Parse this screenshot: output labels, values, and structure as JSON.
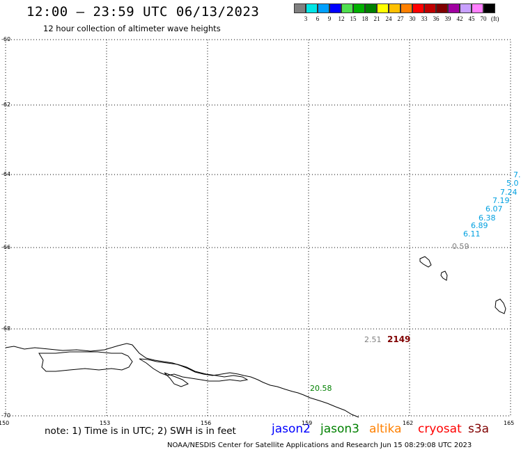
{
  "header": {
    "title": "12:00 – 23:59 UTC 06/13/2023",
    "subtitle": "12 hour collection of altimeter wave heights"
  },
  "color_scale": {
    "labels": [
      "3",
      "6",
      "9",
      "12",
      "15",
      "18",
      "21",
      "24",
      "27",
      "30",
      "33",
      "36",
      "39",
      "42",
      "45",
      "70"
    ],
    "unit": "(ft)",
    "colors": [
      "#808080",
      "#00e5e5",
      "#00a0ff",
      "#0000ff",
      "#50e050",
      "#00b000",
      "#008000",
      "#ffff00",
      "#ffc000",
      "#ff8000",
      "#ff0000",
      "#c00000",
      "#800000",
      "#a000a0",
      "#c8a0ff",
      "#ff80ff",
      "#000000"
    ]
  },
  "axes": {
    "lat_labels": [
      "-60",
      "-62",
      "-64",
      "-66",
      "-68",
      "-70"
    ],
    "lon_labels": [
      "150",
      "153",
      "156",
      "159",
      "162",
      "165"
    ]
  },
  "observations": [
    {
      "text": "7.",
      "color": "#00a0e0"
    },
    {
      "text": "5.0",
      "color": "#00a0e0"
    },
    {
      "text": "7.24",
      "color": "#00a0e0"
    },
    {
      "text": "7.19",
      "color": "#00a0e0"
    },
    {
      "text": "6.07",
      "color": "#00a0e0"
    },
    {
      "text": "6.38",
      "color": "#00a0e0"
    },
    {
      "text": "6.89",
      "color": "#00a0e0"
    },
    {
      "text": "6.11",
      "color": "#00a0e0"
    },
    {
      "text": "0.59",
      "color": "#808080"
    },
    {
      "text": "2.51",
      "color": "#808080"
    },
    {
      "text": "2149",
      "color": "#800000"
    },
    {
      "text": "20.58",
      "color": "#008000"
    }
  ],
  "footer": {
    "note": "note: 1) Time is in UTC; 2) SWH is in feet",
    "satellites": [
      {
        "name": "jason2",
        "color": "#0000ff"
      },
      {
        "name": "jason3",
        "color": "#008000"
      },
      {
        "name": "altika",
        "color": "#ff8000"
      },
      {
        "name": "cryosat",
        "color": "#ff0000"
      },
      {
        "name": "s3a",
        "color": "#800000"
      }
    ],
    "credit": "NOAA/NESDIS Center for Satellite Applications and Research    Jun 15 08:29:08 UTC 2023"
  }
}
